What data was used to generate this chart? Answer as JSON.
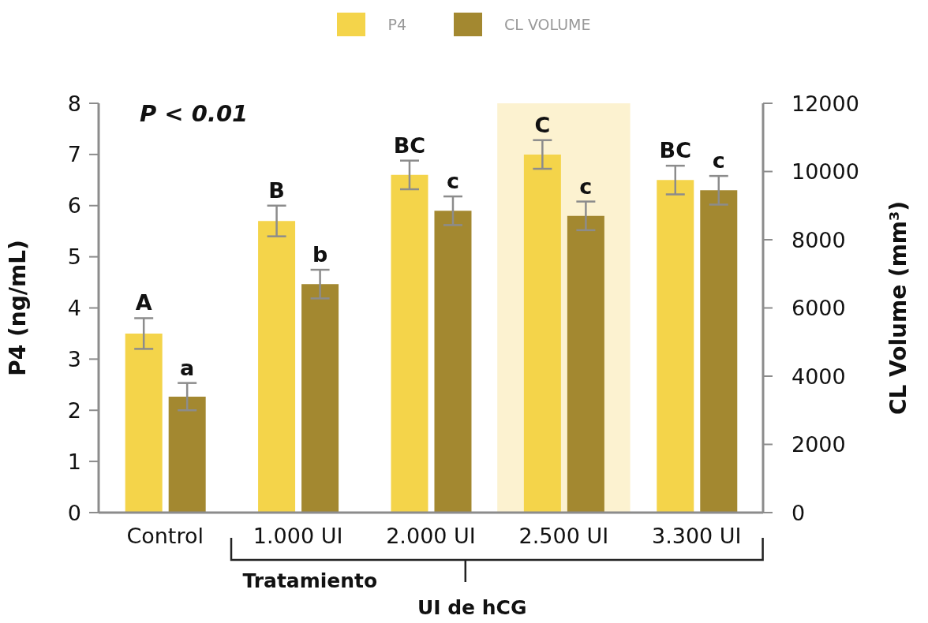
{
  "chart_data": {
    "type": "bar",
    "categories": [
      "Control",
      "1.000 UI",
      "2.000 UI",
      "2.500 UI",
      "3.300 UI"
    ],
    "xlabel": "UI de hCG",
    "ylabel": "P4 (ng/mL)",
    "y2label": "CL Volume (mm³)",
    "series": [
      {
        "name": "P4",
        "color": "#f4d44a",
        "values": [
          3.5,
          5.7,
          6.6,
          7.0,
          6.5
        ],
        "errors": [
          0.3,
          0.3,
          0.28,
          0.28,
          0.28
        ],
        "value_labels": [
          "A",
          "B",
          "BC",
          "C",
          "BC"
        ]
      },
      {
        "name": "CL VOLUME",
        "color": "#a38830",
        "axis": "y2",
        "values": [
          3400,
          6700,
          8850,
          8700,
          9450
        ],
        "errors": [
          400,
          420,
          420,
          420,
          420
        ],
        "value_labels": [
          "a",
          "b",
          "c",
          "c",
          "c"
        ]
      }
    ],
    "ylim": [
      0,
      8
    ],
    "yticks": [
      0,
      1,
      2,
      3,
      4,
      5,
      6,
      7,
      8
    ],
    "y2lim": [
      0,
      12000
    ],
    "y2ticks": [
      0,
      2000,
      4000,
      6000,
      8000,
      10000,
      12000
    ],
    "bands": [
      {
        "axis": "x",
        "from": "2.500 UI",
        "to": "2.500 UI",
        "color": "#fcf2d0"
      }
    ],
    "annotations": [
      "P < 0.01",
      "Tratamiento"
    ],
    "legend": "top"
  }
}
